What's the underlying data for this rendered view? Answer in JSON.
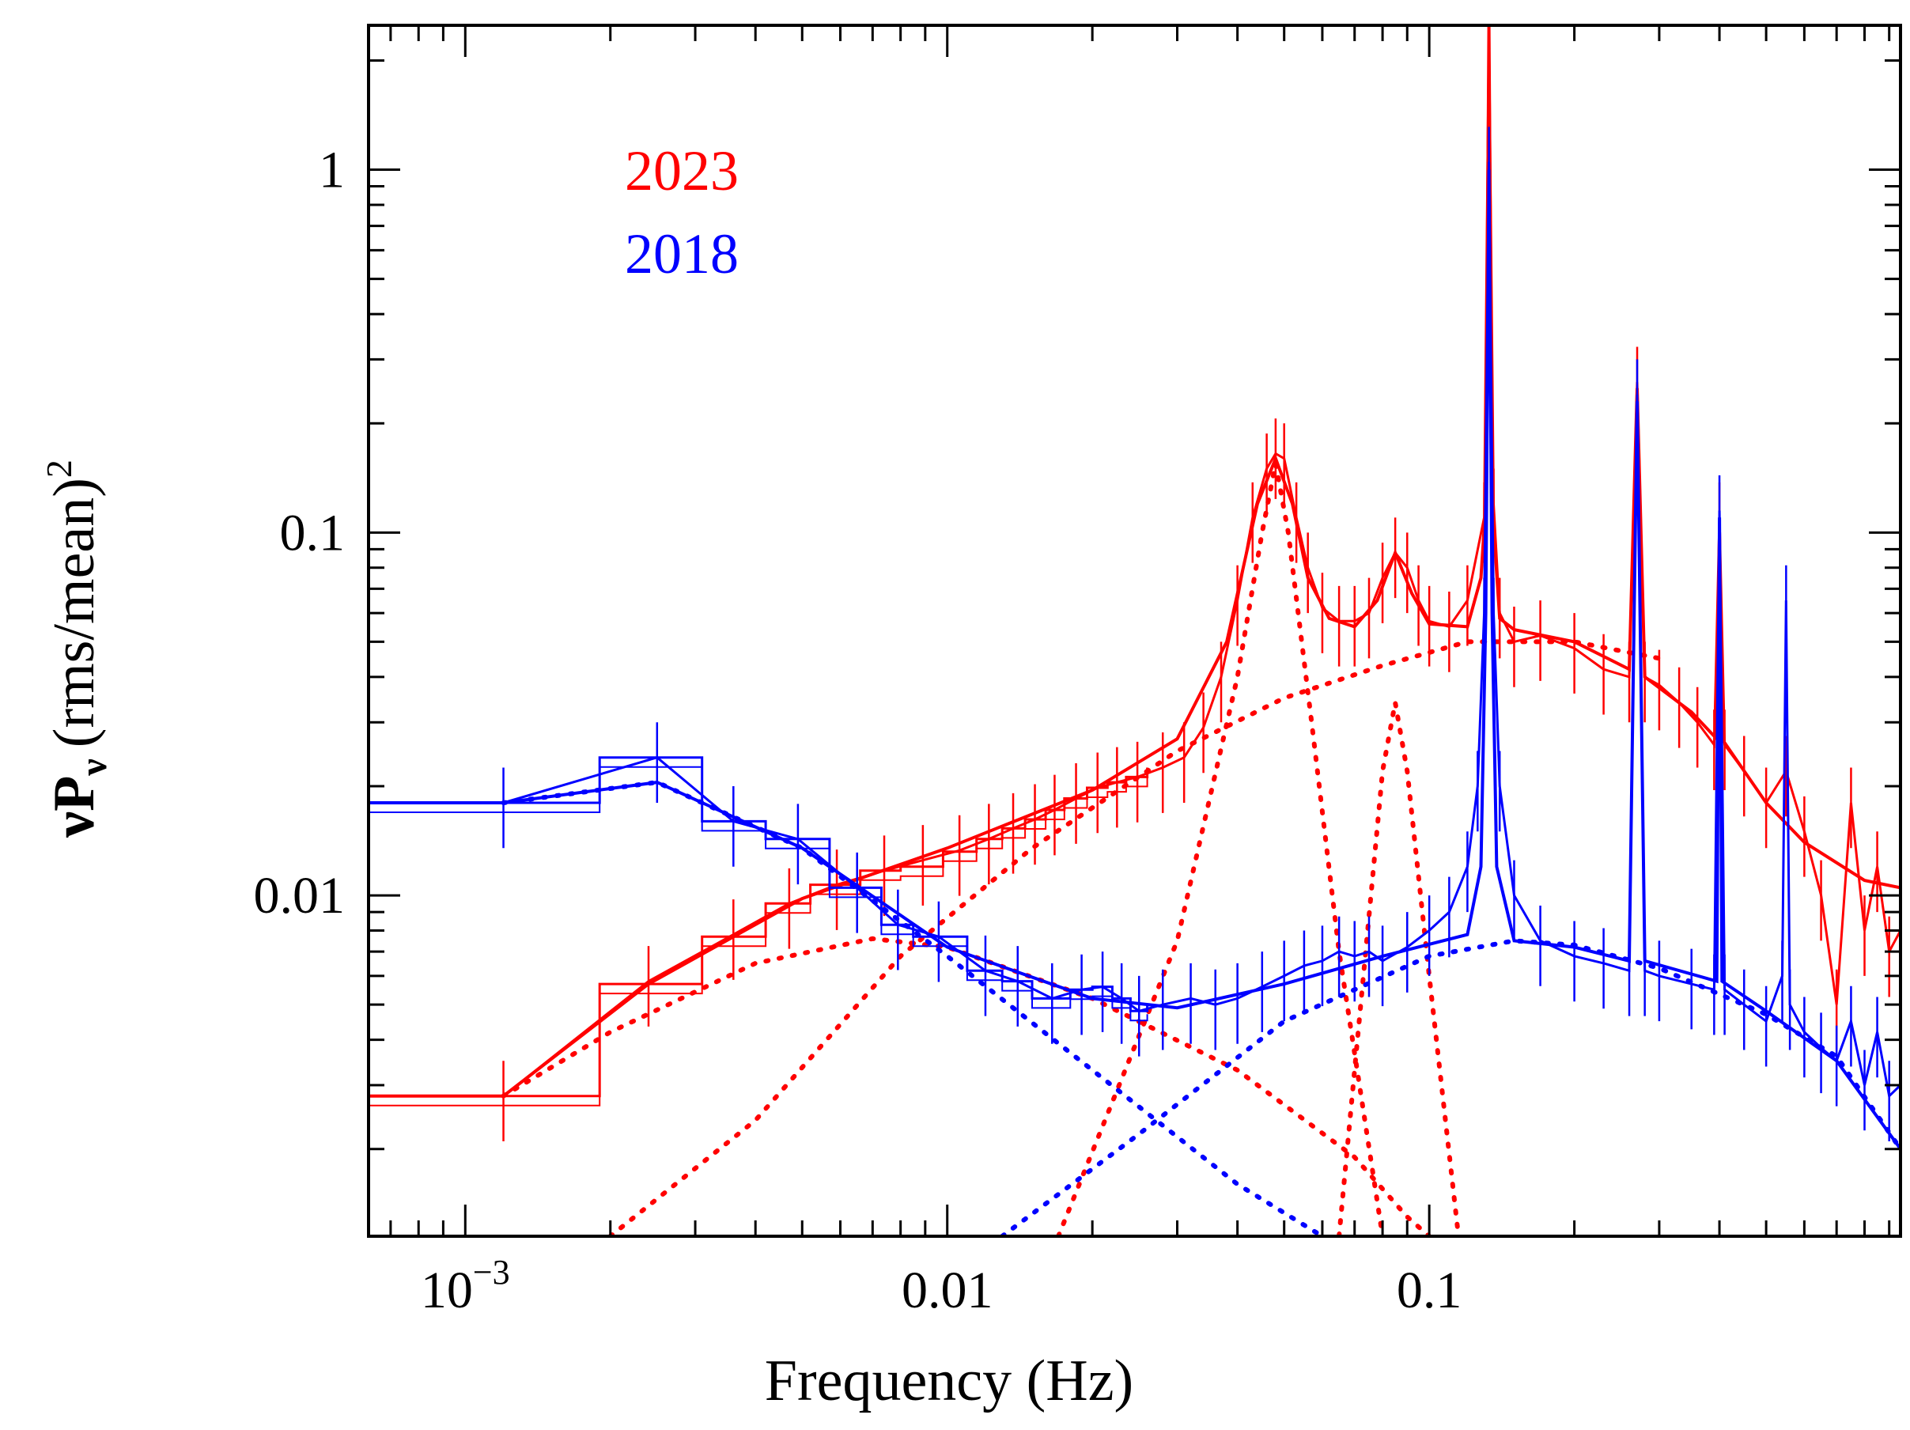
{
  "chart_data": {
    "type": "line",
    "title": "",
    "xlabel": "Frequency (Hz)",
    "ylabel": {
      "nu": "ν",
      "P": "P",
      "sub": "ν",
      "units": "(rms/mean)",
      "sup": "2"
    },
    "xscale": "log",
    "yscale": "log",
    "xlim": [
      0.00063,
      0.95
    ],
    "ylim": [
      0.00115,
      2.5
    ],
    "x_ticks": [
      {
        "value": 0.001,
        "mant": "10",
        "exp": "−3"
      },
      {
        "value": 0.01,
        "label": "0.01"
      },
      {
        "value": 0.1,
        "label": "0.1"
      }
    ],
    "y_ticks": [
      {
        "value": 0.01,
        "label": "0.01"
      },
      {
        "value": 0.1,
        "label": "0.1"
      },
      {
        "value": 1,
        "label": "1"
      }
    ],
    "colors": {
      "2023": "#ff0000",
      "2018": "#0000ff",
      "axis": "#000000"
    },
    "legend": [
      {
        "label": "2023",
        "color": "#ff0000"
      },
      {
        "label": "2018",
        "color": "#0000ff"
      }
    ],
    "series": [
      {
        "name": "2023",
        "color": "#ff0000",
        "steps": [
          [
            0.00063,
            0.0028
          ],
          [
            0.0019,
            0.0057
          ],
          [
            0.0031,
            0.0077
          ],
          [
            0.0042,
            0.0095
          ],
          [
            0.0052,
            0.0107
          ],
          [
            0.0066,
            0.0117
          ],
          [
            0.008,
            0.012
          ],
          [
            0.0098,
            0.0132
          ],
          [
            0.0115,
            0.0143
          ],
          [
            0.013,
            0.0153
          ],
          [
            0.0145,
            0.0162
          ],
          [
            0.016,
            0.0172
          ],
          [
            0.0175,
            0.0185
          ],
          [
            0.0195,
            0.0198
          ],
          [
            0.0215,
            0.0205
          ],
          [
            0.0235,
            0.0212
          ],
          [
            0.026,
            0.0225
          ]
        ],
        "data": [
          [
            0.0012,
            0.0028
          ],
          [
            0.0024,
            0.0058
          ],
          [
            0.0036,
            0.0078
          ],
          [
            0.0047,
            0.0095
          ],
          [
            0.0059,
            0.0107
          ],
          [
            0.0074,
            0.0117
          ],
          [
            0.0089,
            0.0125
          ],
          [
            0.0106,
            0.0133
          ],
          [
            0.0122,
            0.0143
          ],
          [
            0.0137,
            0.0153
          ],
          [
            0.0152,
            0.0162
          ],
          [
            0.0167,
            0.0172
          ],
          [
            0.0185,
            0.0185
          ],
          [
            0.0205,
            0.0198
          ],
          [
            0.0225,
            0.0205
          ],
          [
            0.0248,
            0.0212
          ],
          [
            0.028,
            0.0225
          ],
          [
            0.031,
            0.024
          ],
          [
            0.034,
            0.029
          ],
          [
            0.037,
            0.04
          ],
          [
            0.04,
            0.065
          ],
          [
            0.043,
            0.11
          ],
          [
            0.046,
            0.15
          ],
          [
            0.048,
            0.165
          ],
          [
            0.05,
            0.16
          ],
          [
            0.053,
            0.11
          ],
          [
            0.056,
            0.08
          ],
          [
            0.06,
            0.062
          ],
          [
            0.065,
            0.057
          ],
          [
            0.07,
            0.057
          ],
          [
            0.075,
            0.06
          ],
          [
            0.08,
            0.075
          ],
          [
            0.085,
            0.088
          ],
          [
            0.09,
            0.08
          ],
          [
            0.095,
            0.065
          ],
          [
            0.1,
            0.057
          ],
          [
            0.11,
            0.055
          ],
          [
            0.12,
            0.065
          ],
          [
            0.13,
            0.11
          ],
          [
            0.133,
            2.5
          ],
          [
            0.136,
            0.12
          ],
          [
            0.14,
            0.06
          ],
          [
            0.15,
            0.05
          ],
          [
            0.17,
            0.052
          ],
          [
            0.2,
            0.048
          ],
          [
            0.23,
            0.042
          ],
          [
            0.26,
            0.04
          ],
          [
            0.27,
            0.26
          ],
          [
            0.28,
            0.04
          ],
          [
            0.3,
            0.038
          ],
          [
            0.33,
            0.034
          ],
          [
            0.36,
            0.03
          ],
          [
            0.39,
            0.026
          ],
          [
            0.4,
            0.11
          ],
          [
            0.41,
            0.026
          ],
          [
            0.45,
            0.022
          ],
          [
            0.5,
            0.018
          ],
          [
            0.55,
            0.022
          ],
          [
            0.6,
            0.015
          ],
          [
            0.65,
            0.01
          ],
          [
            0.7,
            0.005
          ],
          [
            0.75,
            0.018
          ],
          [
            0.8,
            0.008
          ],
          [
            0.85,
            0.012
          ],
          [
            0.9,
            0.007
          ],
          [
            0.95,
            0.008
          ]
        ],
        "model": [
          [
            0.00063,
            0.0028
          ],
          [
            0.0012,
            0.0028
          ],
          [
            0.0024,
            0.0057
          ],
          [
            0.005,
            0.0098
          ],
          [
            0.01,
            0.0135
          ],
          [
            0.02,
            0.0195
          ],
          [
            0.03,
            0.027
          ],
          [
            0.038,
            0.05
          ],
          [
            0.044,
            0.12
          ],
          [
            0.048,
            0.16
          ],
          [
            0.052,
            0.12
          ],
          [
            0.056,
            0.075
          ],
          [
            0.062,
            0.058
          ],
          [
            0.07,
            0.055
          ],
          [
            0.078,
            0.065
          ],
          [
            0.085,
            0.088
          ],
          [
            0.092,
            0.068
          ],
          [
            0.1,
            0.056
          ],
          [
            0.12,
            0.055
          ],
          [
            0.128,
            0.075
          ],
          [
            0.131,
            0.12
          ],
          [
            0.133,
            2.5
          ],
          [
            0.135,
            0.12
          ],
          [
            0.14,
            0.058
          ],
          [
            0.15,
            0.054
          ],
          [
            0.2,
            0.05
          ],
          [
            0.26,
            0.042
          ],
          [
            0.27,
            0.25
          ],
          [
            0.28,
            0.04
          ],
          [
            0.35,
            0.032
          ],
          [
            0.395,
            0.027
          ],
          [
            0.4,
            0.1
          ],
          [
            0.405,
            0.027
          ],
          [
            0.5,
            0.018
          ],
          [
            0.6,
            0.014
          ],
          [
            0.8,
            0.011
          ],
          [
            0.95,
            0.0105
          ]
        ],
        "components": [
          [
            [
              0.0012,
              0.0028
            ],
            [
              0.002,
              0.0042
            ],
            [
              0.004,
              0.0065
            ],
            [
              0.007,
              0.0076
            ],
            [
              0.01,
              0.0072
            ],
            [
              0.02,
              0.0052
            ],
            [
              0.04,
              0.0033
            ],
            [
              0.07,
              0.0019
            ],
            [
              0.09,
              0.0013
            ],
            [
              0.1,
              0.00115
            ]
          ],
          [
            [
              0.002,
              0.00115
            ],
            [
              0.004,
              0.0024
            ],
            [
              0.008,
              0.0068
            ],
            [
              0.015,
              0.0135
            ],
            [
              0.03,
              0.025
            ],
            [
              0.05,
              0.035
            ],
            [
              0.08,
              0.043
            ],
            [
              0.12,
              0.05
            ],
            [
              0.2,
              0.05
            ],
            [
              0.3,
              0.045
            ]
          ],
          [
            [
              0.017,
              0.00115
            ],
            [
              0.03,
              0.0075
            ],
            [
              0.04,
              0.04
            ],
            [
              0.045,
              0.1
            ],
            [
              0.048,
              0.155
            ],
            [
              0.051,
              0.1
            ],
            [
              0.057,
              0.03
            ],
            [
              0.065,
              0.007
            ],
            [
              0.08,
              0.00115
            ]
          ],
          [
            [
              0.065,
              0.00115
            ],
            [
              0.073,
              0.006
            ],
            [
              0.08,
              0.022
            ],
            [
              0.085,
              0.034
            ],
            [
              0.09,
              0.022
            ],
            [
              0.1,
              0.006
            ],
            [
              0.115,
              0.00115
            ]
          ]
        ]
      },
      {
        "name": "2018",
        "color": "#0000ff",
        "steps": [
          [
            0.00063,
            0.018
          ],
          [
            0.0019,
            0.024
          ],
          [
            0.0031,
            0.016
          ],
          [
            0.0042,
            0.0143
          ],
          [
            0.0057,
            0.0105
          ],
          [
            0.0073,
            0.0083
          ],
          [
            0.0085,
            0.0077
          ],
          [
            0.011,
            0.0062
          ],
          [
            0.013,
            0.0058
          ],
          [
            0.015,
            0.0052
          ],
          [
            0.018,
            0.0055
          ],
          [
            0.02,
            0.0056
          ],
          [
            0.022,
            0.0052
          ],
          [
            0.024,
            0.0048
          ],
          [
            0.026,
            0.005
          ]
        ],
        "data": [
          [
            0.0012,
            0.018
          ],
          [
            0.0025,
            0.024
          ],
          [
            0.0036,
            0.016
          ],
          [
            0.0049,
            0.0143
          ],
          [
            0.0065,
            0.0105
          ],
          [
            0.0079,
            0.0083
          ],
          [
            0.0096,
            0.0077
          ],
          [
            0.012,
            0.0062
          ],
          [
            0.014,
            0.0058
          ],
          [
            0.0165,
            0.0052
          ],
          [
            0.019,
            0.0055
          ],
          [
            0.021,
            0.0056
          ],
          [
            0.023,
            0.0052
          ],
          [
            0.025,
            0.0048
          ],
          [
            0.028,
            0.005
          ],
          [
            0.032,
            0.0052
          ],
          [
            0.036,
            0.005
          ],
          [
            0.04,
            0.0052
          ],
          [
            0.045,
            0.0056
          ],
          [
            0.05,
            0.006
          ],
          [
            0.055,
            0.0064
          ],
          [
            0.06,
            0.0066
          ],
          [
            0.065,
            0.007
          ],
          [
            0.07,
            0.0068
          ],
          [
            0.075,
            0.007
          ],
          [
            0.08,
            0.0066
          ],
          [
            0.09,
            0.0072
          ],
          [
            0.1,
            0.008
          ],
          [
            0.11,
            0.009
          ],
          [
            0.12,
            0.012
          ],
          [
            0.126,
            0.02
          ],
          [
            0.13,
            0.06
          ],
          [
            0.133,
            1.05
          ],
          [
            0.136,
            0.06
          ],
          [
            0.14,
            0.02
          ],
          [
            0.15,
            0.01
          ],
          [
            0.17,
            0.0075
          ],
          [
            0.2,
            0.0068
          ],
          [
            0.23,
            0.0065
          ],
          [
            0.26,
            0.0062
          ],
          [
            0.27,
            0.24
          ],
          [
            0.28,
            0.0062
          ],
          [
            0.3,
            0.006
          ],
          [
            0.35,
            0.0057
          ],
          [
            0.39,
            0.0055
          ],
          [
            0.4,
            0.115
          ],
          [
            0.41,
            0.0055
          ],
          [
            0.45,
            0.005
          ],
          [
            0.5,
            0.0045
          ],
          [
            0.54,
            0.006
          ],
          [
            0.55,
            0.065
          ],
          [
            0.56,
            0.005
          ],
          [
            0.6,
            0.0042
          ],
          [
            0.65,
            0.0038
          ],
          [
            0.7,
            0.0035
          ],
          [
            0.75,
            0.0045
          ],
          [
            0.8,
            0.003
          ],
          [
            0.85,
            0.0042
          ],
          [
            0.9,
            0.0028
          ],
          [
            0.95,
            0.003
          ]
        ],
        "model": [
          [
            0.00063,
            0.018
          ],
          [
            0.0012,
            0.018
          ],
          [
            0.0025,
            0.0205
          ],
          [
            0.005,
            0.0135
          ],
          [
            0.01,
            0.0072
          ],
          [
            0.02,
            0.0052
          ],
          [
            0.03,
            0.0049
          ],
          [
            0.05,
            0.0057
          ],
          [
            0.08,
            0.0068
          ],
          [
            0.12,
            0.0078
          ],
          [
            0.128,
            0.012
          ],
          [
            0.131,
            0.06
          ],
          [
            0.133,
            1.0
          ],
          [
            0.135,
            0.06
          ],
          [
            0.138,
            0.012
          ],
          [
            0.15,
            0.0075
          ],
          [
            0.2,
            0.0072
          ],
          [
            0.26,
            0.0066
          ],
          [
            0.27,
            0.23
          ],
          [
            0.28,
            0.0066
          ],
          [
            0.395,
            0.0058
          ],
          [
            0.4,
            0.11
          ],
          [
            0.405,
            0.0058
          ],
          [
            0.5,
            0.0048
          ],
          [
            0.7,
            0.0035
          ],
          [
            0.95,
            0.002
          ]
        ],
        "components": [
          [
            [
              0.0012,
              0.018
            ],
            [
              0.0025,
              0.0205
            ],
            [
              0.005,
              0.0135
            ],
            [
              0.01,
              0.0068
            ],
            [
              0.02,
              0.0033
            ],
            [
              0.04,
              0.0016
            ],
            [
              0.06,
              0.00115
            ]
          ],
          [
            [
              0.013,
              0.00115
            ],
            [
              0.025,
              0.0022
            ],
            [
              0.05,
              0.0045
            ],
            [
              0.1,
              0.0068
            ],
            [
              0.15,
              0.0075
            ],
            [
              0.2,
              0.0073
            ],
            [
              0.3,
              0.0063
            ],
            [
              0.5,
              0.0047
            ],
            [
              0.7,
              0.0036
            ],
            [
              0.95,
              0.002
            ]
          ]
        ]
      }
    ]
  }
}
